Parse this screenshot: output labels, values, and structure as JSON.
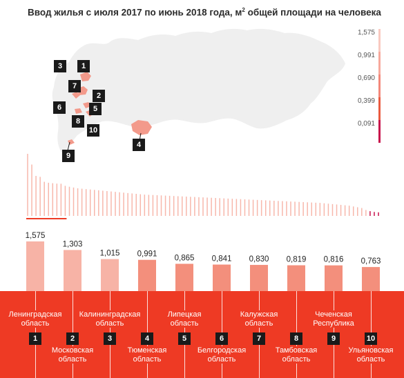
{
  "title": "Ввод жилья с июля 2017 по июнь 2018 года, м",
  "title_sup": "2",
  "title_rest": " общей площади на человека",
  "colors": {
    "bar": "#f7b3a6",
    "bar_dark": "#f38f7c",
    "bottom_bg": "#ee3a24",
    "badge": "#1a1a1a",
    "spark_light": "#f7b7ab",
    "spark_end": "#c8104b",
    "map_land": "#efefef",
    "map_region": "#f39a8b"
  },
  "legend_scale": [
    "1,575",
    "0,991",
    "0,690",
    "0,399",
    "0,091"
  ],
  "legend_colors": [
    "#f9c9c0",
    "#f7a99c",
    "#f3887a",
    "#ea5a3f",
    "#c8104b"
  ],
  "map_markers": [
    "3",
    "1",
    "7",
    "2",
    "6",
    "5",
    "8",
    "10",
    "9",
    "4"
  ],
  "chart_data": {
    "type": "bar",
    "title": "Ввод жилья с июля 2017 по июнь 2018 года, м2 общей площади на человека",
    "categories": [
      "Ленинградская область",
      "Московская область",
      "Калининградская область",
      "Тюменская область",
      "Липецкая область",
      "Белгородская область",
      "Калужская область",
      "Тамбовская область",
      "Чеченская Республика",
      "Ульяновская область"
    ],
    "ranks": [
      "1",
      "2",
      "3",
      "4",
      "5",
      "6",
      "7",
      "8",
      "9",
      "10"
    ],
    "values": [
      1.575,
      1.303,
      1.015,
      0.991,
      0.865,
      0.841,
      0.83,
      0.819,
      0.816,
      0.763
    ],
    "value_labels": [
      "1,575",
      "1,303",
      "1,015",
      "0,991",
      "0,865",
      "0,841",
      "0,830",
      "0,819",
      "0,816",
      "0,763"
    ],
    "label_position": [
      "top",
      "bottom",
      "top",
      "bottom",
      "top",
      "bottom",
      "top",
      "bottom",
      "top",
      "bottom"
    ],
    "all_regions": [
      1.575,
      1.303,
      1.015,
      0.991,
      0.865,
      0.841,
      0.83,
      0.819,
      0.816,
      0.763,
      0.74,
      0.72,
      0.7,
      0.69,
      0.68,
      0.67,
      0.66,
      0.65,
      0.64,
      0.63,
      0.62,
      0.61,
      0.6,
      0.59,
      0.58,
      0.57,
      0.56,
      0.55,
      0.54,
      0.535,
      0.53,
      0.525,
      0.52,
      0.515,
      0.51,
      0.505,
      0.5,
      0.495,
      0.49,
      0.485,
      0.48,
      0.475,
      0.47,
      0.465,
      0.46,
      0.455,
      0.45,
      0.445,
      0.44,
      0.435,
      0.43,
      0.425,
      0.42,
      0.415,
      0.41,
      0.405,
      0.4,
      0.395,
      0.39,
      0.385,
      0.38,
      0.375,
      0.37,
      0.365,
      0.36,
      0.355,
      0.35,
      0.345,
      0.34,
      0.335,
      0.33,
      0.32,
      0.31,
      0.3,
      0.29,
      0.28,
      0.27,
      0.26,
      0.24,
      0.22,
      0.2,
      0.15,
      0.12,
      0.1,
      0.091
    ],
    "ylim": [
      0,
      1.575
    ]
  }
}
